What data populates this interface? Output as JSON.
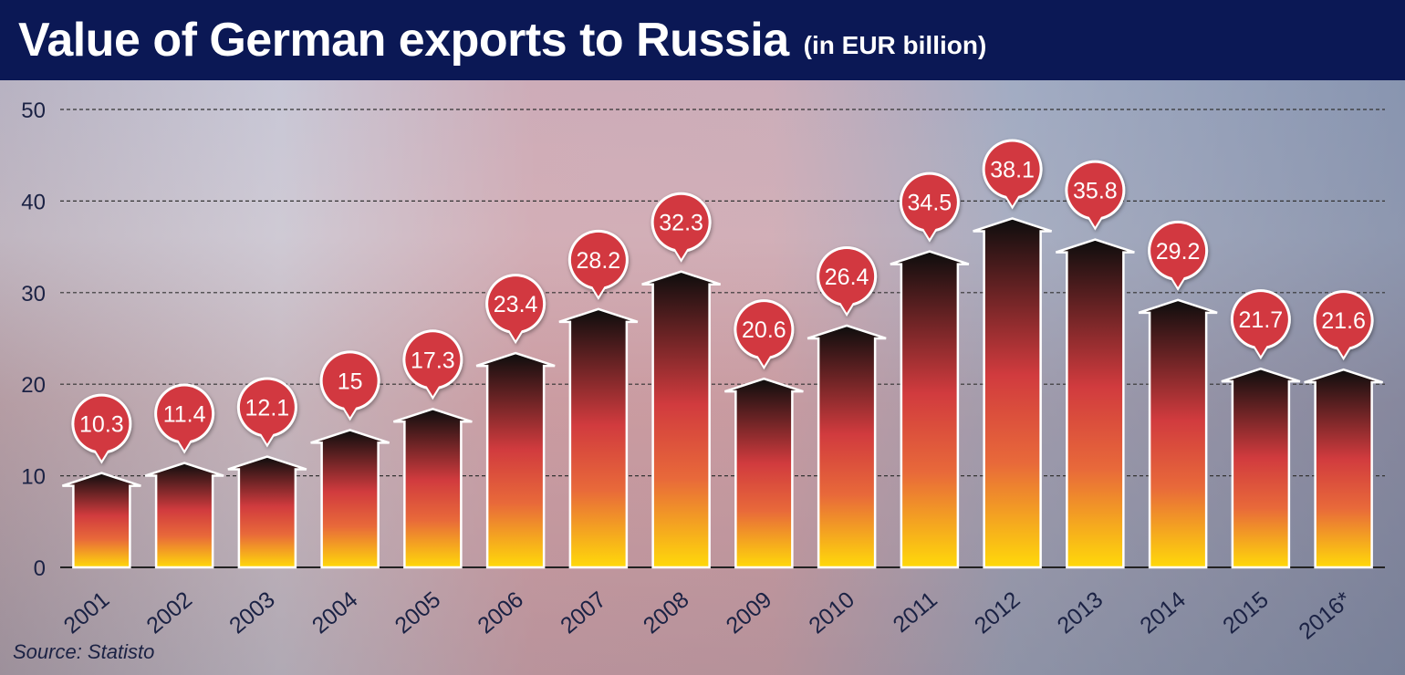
{
  "header": {
    "title": "Value of German exports to Russia",
    "subtitle": "(in EUR billion)"
  },
  "footer": {
    "source": "Source: Statisto"
  },
  "colors": {
    "header_bg": "#0b1855",
    "bubble": "#d2393f",
    "gradient_top": "#0d0d0d",
    "gradient_mid": "#d13b3e",
    "gradient_bottom": "#ffd90a"
  },
  "chart_data": {
    "type": "bar",
    "title": "Value of German exports to Russia",
    "subtitle": "(in EUR billion)",
    "categories": [
      "2001",
      "2002",
      "2003",
      "2004",
      "2005",
      "2006",
      "2007",
      "2008",
      "2009",
      "2010",
      "2011",
      "2012",
      "2013",
      "2014",
      "2015",
      "2016*"
    ],
    "values": [
      10.3,
      11.4,
      12.1,
      15,
      17.3,
      23.4,
      28.2,
      32.3,
      20.6,
      26.4,
      34.5,
      38.1,
      35.8,
      29.2,
      21.7,
      21.6
    ],
    "data_labels": [
      "10.3",
      "11.4",
      "12.1",
      "15",
      "17.3",
      "23.4",
      "28.2",
      "32.3",
      "20.6",
      "26.4",
      "34.5",
      "38.1",
      "35.8",
      "29.2",
      "21.7",
      "21.6"
    ],
    "ylim": [
      0,
      50
    ],
    "yticks": [
      0,
      10,
      20,
      30,
      40,
      50
    ],
    "xlabel": "",
    "ylabel": "",
    "grid": true
  }
}
